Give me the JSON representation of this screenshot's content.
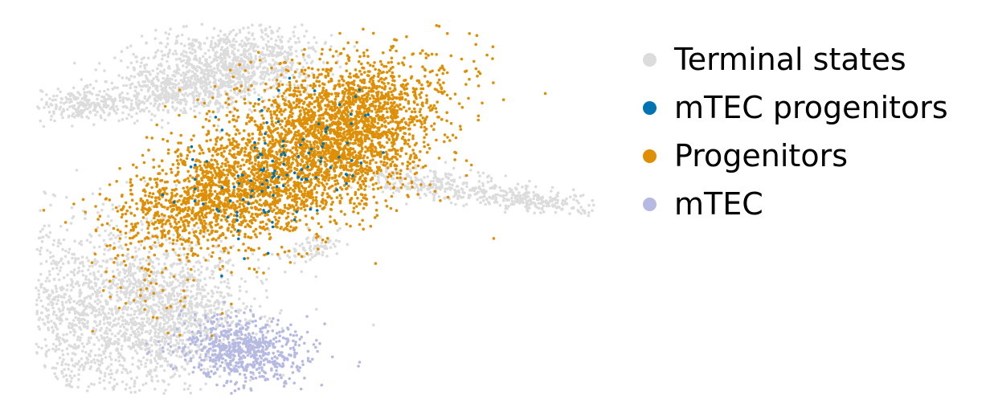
{
  "chart_data": {
    "type": "scatter",
    "title": "",
    "xlabel": "",
    "ylabel": "",
    "axes_visible": false,
    "grid": false,
    "legend_placement": "right",
    "series": [
      {
        "name": "Terminal states",
        "color": "#dcdcdc"
      },
      {
        "name": "mTEC progenitors",
        "color": "#0173b2"
      },
      {
        "name": "Progenitors",
        "color": "#de8f05"
      },
      {
        "name": "mTEC",
        "color": "#b6bae3"
      }
    ]
  }
}
